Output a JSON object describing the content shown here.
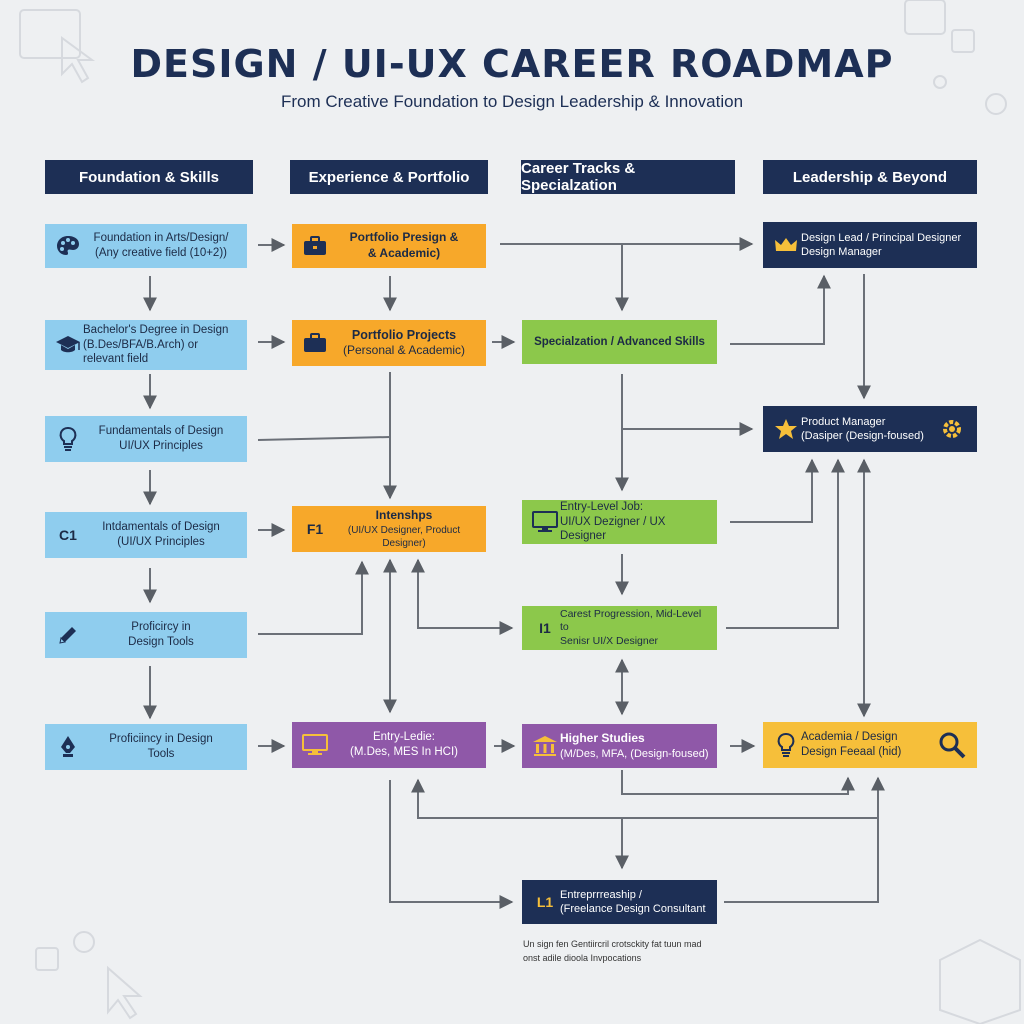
{
  "header": {
    "title": "DESIGN / UI-UX CAREER ROADMAP",
    "subtitle": "From Creative Foundation to Design Leadership & Innovation"
  },
  "columns": [
    {
      "label": "Foundation & Skills"
    },
    {
      "label": "Experience & Portfolio"
    },
    {
      "label": "Career Tracks & Specialzation"
    },
    {
      "label": "Leadership & Beyond"
    }
  ],
  "nodes": {
    "foundation_arts": {
      "icon": "palette-icon",
      "text": "Foundation in Arts/Design/\n(Any creative field (10+2))"
    },
    "bachelors": {
      "icon": "graduation-cap-icon",
      "text": "Bachelor's Degree in Design\n(B.Des/BFA/B.Arch) or\nrelevant field"
    },
    "fundamentals_a": {
      "icon": "lightbulb-icon",
      "text": "Fundamentals of Design\nUI/UX Principles"
    },
    "fundamentals_b": {
      "code": "C1",
      "text": "Intdamentals of Design\n(UI/UX Principles"
    },
    "proficiency_a": {
      "icon": "pencil-icon",
      "text": "Proficircy in\nDesign Tools"
    },
    "proficiency_b": {
      "icon": "pen-nib-icon",
      "text": "Proficiincy in Design\nTools"
    },
    "portfolio_presign": {
      "icon": "briefcase-icon",
      "text": "Portfolio Presign &\n& Academic)"
    },
    "portfolio_projects": {
      "icon": "briefcase-icon",
      "title": "Portfolio Projects",
      "text": "(Personal & Academic)"
    },
    "internships": {
      "code": "F1",
      "title": "Intenshps",
      "text": "(UI/UX Designer, Product Designer)"
    },
    "entry_ledie": {
      "icon": "monitor-icon",
      "text": "Entry-Ledie:\n(M.Des, MES In HCI)"
    },
    "specialization": {
      "text": "Specialzation / Advanced Skills"
    },
    "entry_level": {
      "icon": "monitor-icon",
      "text": "Entry-Level Job:\nUI/UX Dezigner / UX Designer"
    },
    "career_progression": {
      "code": "I1",
      "text": "Carest Progression, Mid-Level to\nSenisr UI/X Designer"
    },
    "higher_studies": {
      "icon": "institution-icon",
      "title": "Higher Studies",
      "text": "(M/Des, MFA, (Design-foused)"
    },
    "design_lead": {
      "icon": "crown-icon",
      "text": "Design Lead / Principal Designer\nDesign Manager"
    },
    "product_manager": {
      "icon": "star-icon",
      "icon_right": "gear-icon",
      "text": "Product Manager\n(Dasiper (Design-foused)"
    },
    "academia": {
      "icon": "lightbulb-icon",
      "icon_right": "magnifier-icon",
      "text": "Academia / Design\nDesign Feeaal (hid)"
    },
    "entrepreneurship": {
      "code": "L1",
      "text": "Entreprrreaship /\n(Freelance Design Consultant"
    }
  },
  "footnote": "Un  sign fen Gentiircril crotsckity fat tuun mad\nonst adile dioola Invpocations",
  "colors": {
    "navy": "#1d2f55",
    "blue": "#8fcdee",
    "orange": "#f7a82a",
    "green": "#8cc84b",
    "purple": "#8f58a8",
    "yellow": "#f6bf3a",
    "background": "#eef0f2"
  }
}
